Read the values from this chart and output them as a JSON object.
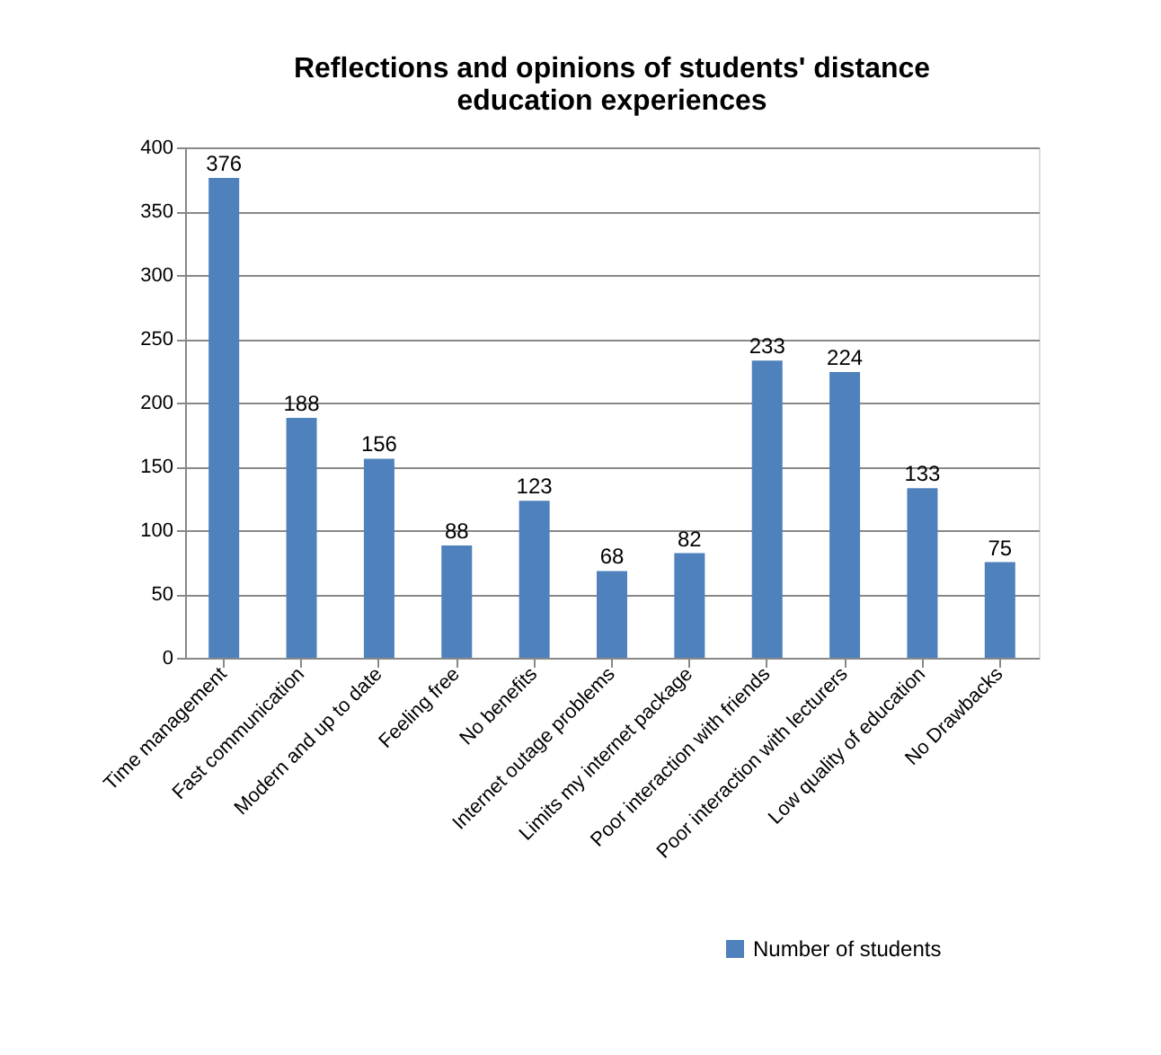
{
  "chart_data": {
    "type": "bar",
    "title": "Reflections and opinions of students' distance education experiences",
    "categories": [
      "Time management",
      "Fast communication",
      "Modern and up to date",
      "Feeling free",
      "No benefits",
      "Internet outage problems",
      "Limits my internet package",
      "Poor interaction with friends",
      "Poor interaction with lecturers",
      "Low quality of education",
      "No Drawbacks"
    ],
    "series": [
      {
        "name": "Number of students",
        "color": "#4f81bd",
        "values": [
          376,
          188,
          156,
          88,
          123,
          68,
          82,
          233,
          224,
          133,
          75
        ]
      }
    ],
    "ylim": [
      0,
      400
    ],
    "yticks": [
      0,
      50,
      100,
      150,
      200,
      250,
      300,
      350,
      400
    ],
    "grid": "y",
    "legend": "bottom right",
    "data_labels": true
  }
}
